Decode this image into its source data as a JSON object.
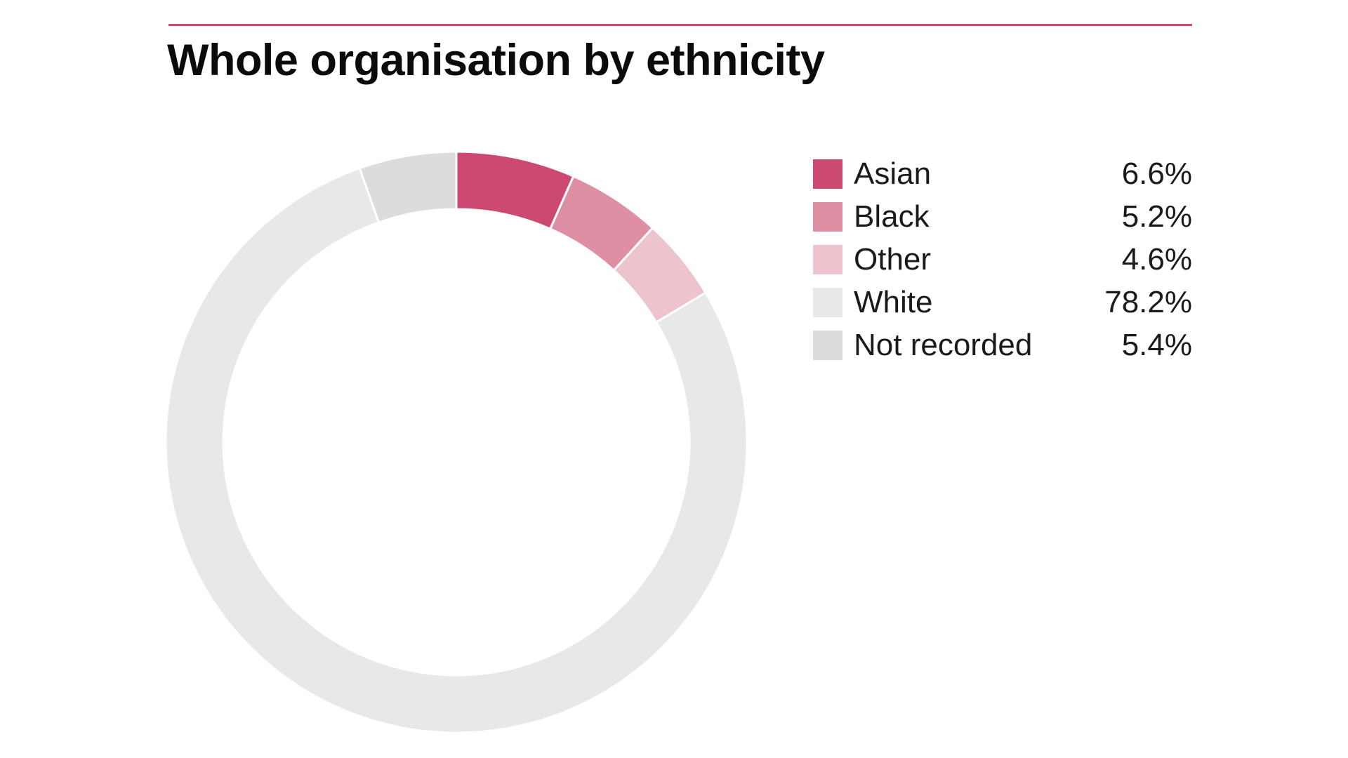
{
  "chart_data": {
    "type": "pie",
    "variant": "donut",
    "title": "Whole organisation by ethnicity",
    "legend_position": "right",
    "series": [
      {
        "name": "Asian",
        "value": 6.6,
        "label": "6.6%",
        "color": "#cc4a72"
      },
      {
        "name": "Black",
        "value": 5.2,
        "label": "5.2%",
        "color": "#de8fa3"
      },
      {
        "name": "Other",
        "value": 4.6,
        "label": "4.6%",
        "color": "#edc3cd"
      },
      {
        "name": "White",
        "value": 78.2,
        "label": "78.2%",
        "color": "#e8e8e8"
      },
      {
        "name": "Not recorded",
        "value": 5.4,
        "label": "5.4%",
        "color": "#dcdcdc"
      }
    ]
  },
  "colors": {
    "accent": "#cc4a72",
    "slice_separator": "#ffffff"
  }
}
